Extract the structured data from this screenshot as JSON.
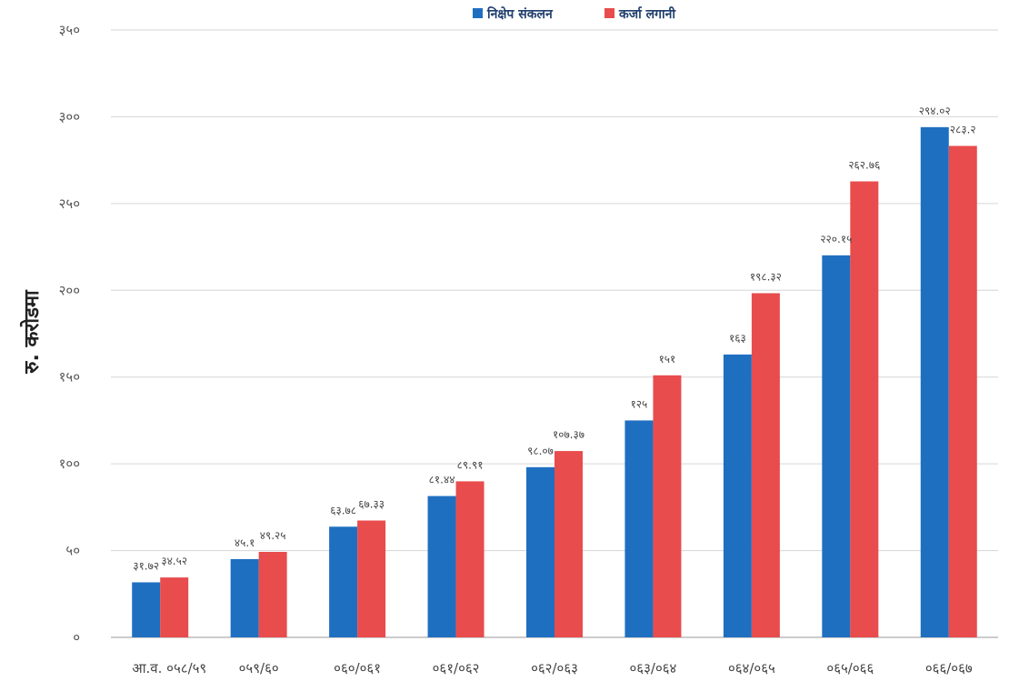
{
  "chart_data": {
    "type": "bar",
    "ylabel": "रु. करोडमा",
    "categories": [
      "आ.व. ०५८/५९",
      "०५९/६०",
      "०६०/०६१",
      "०६१/०६२",
      "०६२/०६३",
      "०६३/०६४",
      "०६४/०६५",
      "०६५/०६६",
      "०६६/०६७"
    ],
    "series": [
      {
        "name": "निक्षेप संकलन",
        "color": "#1f6fc1",
        "values": [
          31.72,
          45.1,
          63.78,
          81.44,
          98.07,
          125,
          163,
          220.15,
          294.02
        ],
        "labels": [
          "३१.७२",
          "४५.१",
          "६३.७८",
          "८१.४४",
          "९८.०७",
          "१२५",
          "१६३",
          "२२०.१५",
          "२९४.०२"
        ]
      },
      {
        "name": "कर्जा लगानी",
        "color": "#e84c4c",
        "values": [
          34.52,
          49.25,
          67.33,
          89.91,
          107.37,
          151,
          198.32,
          262.76,
          283.2
        ],
        "labels": [
          "३४.५२",
          "४९.२५",
          "६७.३३",
          "८९.९१",
          "१०७.३७",
          "१५१",
          "१९८.३२",
          "२६२.७६",
          "२८३.२"
        ]
      }
    ],
    "ylim": [
      0,
      350
    ],
    "yticks": [
      0,
      50,
      100,
      150,
      200,
      250,
      300,
      350
    ],
    "ytick_labels": [
      "०",
      "५०",
      "१००",
      "१५०",
      "२००",
      "२५०",
      "३००",
      "३५०"
    ],
    "grid": true,
    "legend_position": "top-center"
  }
}
